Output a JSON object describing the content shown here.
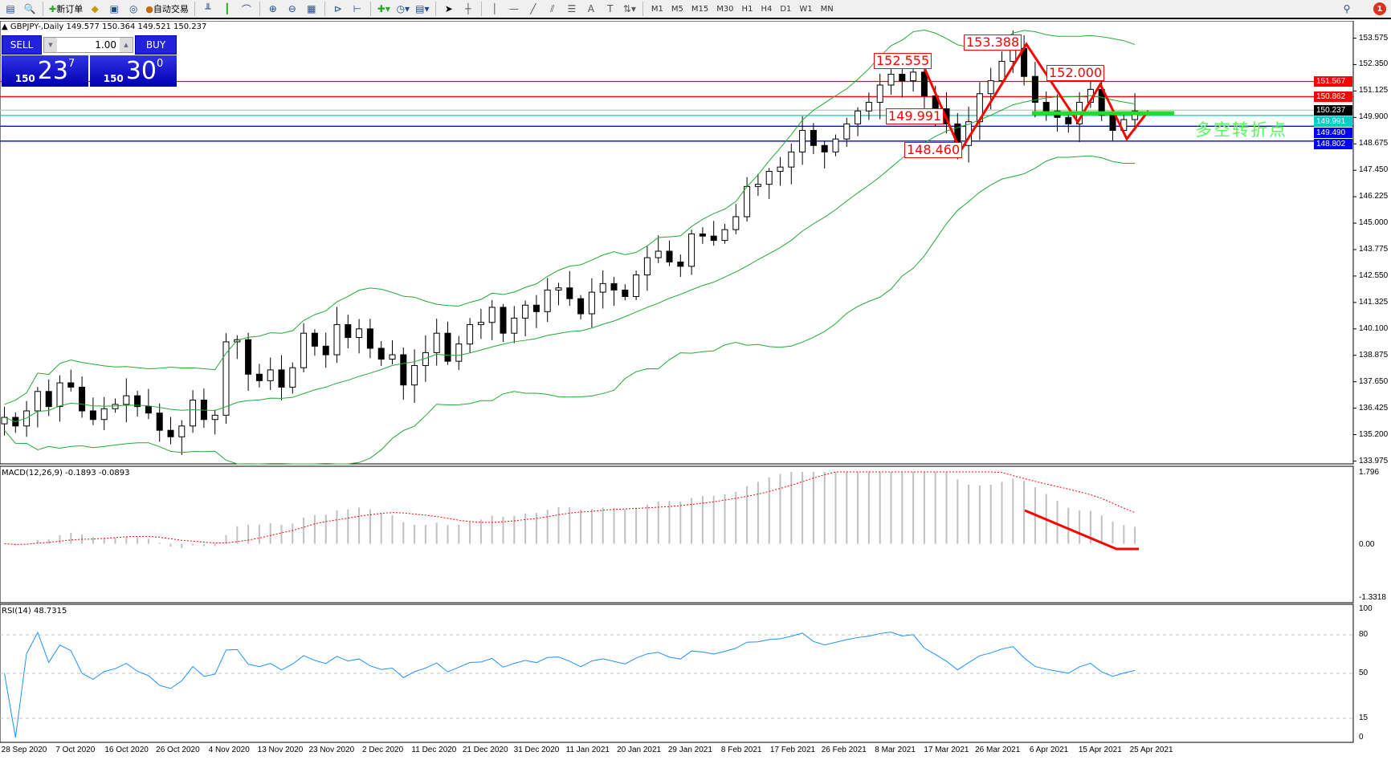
{
  "toolbar": {
    "new_order": "新订单",
    "auto_trading": "自动交易",
    "timeframes": [
      "M1",
      "M5",
      "M15",
      "M30",
      "H1",
      "H4",
      "D1",
      "W1",
      "MN"
    ],
    "notification_count": "1"
  },
  "symbol": {
    "info": "GBPJPY-,Daily  149.577 150.364 149.521 150.237"
  },
  "trade_panel": {
    "sell_label": "SELL",
    "buy_label": "BUY",
    "lot": "1.00",
    "sell_small": "150",
    "sell_big": "23",
    "sell_sup": "7",
    "buy_small": "150",
    "buy_big": "30",
    "buy_sup": "0"
  },
  "colors": {
    "bull": "#ffffff",
    "bear": "#000000",
    "bands": "#22aa33",
    "macd_hist": "#c0c0c0",
    "signal": "#ff0000",
    "rsi": "#1e90ff",
    "annotation": "#ff0000",
    "turn_line": "#22dd22"
  },
  "chart_data": {
    "type": "candlestick",
    "price_axis": [
      "153.575",
      "152.350",
      "151.125",
      "149.900",
      "148.675",
      "147.450",
      "146.225",
      "145.000",
      "143.775",
      "142.550",
      "141.325",
      "140.100",
      "138.875",
      "137.650",
      "136.425",
      "135.200",
      "133.975"
    ],
    "ylim": [
      133.975,
      153.575
    ],
    "dates": [
      "28 Sep 2020",
      "7 Oct 2020",
      "16 Oct 2020",
      "26 Oct 2020",
      "4 Nov 2020",
      "13 Nov 2020",
      "23 Nov 2020",
      "2 Dec 2020",
      "11 Dec 2020",
      "21 Dec 2020",
      "31 Dec 2020",
      "11 Jan 2021",
      "20 Jan 2021",
      "29 Jan 2021",
      "8 Feb 2021",
      "17 Feb 2021",
      "26 Feb 2021",
      "8 Mar 2021",
      "17 Mar 2021",
      "26 Mar 2021",
      "6 Apr 2021",
      "15 Apr 2021",
      "25 Apr 2021"
    ],
    "closes": [
      136.0,
      135.6,
      136.3,
      137.2,
      136.5,
      137.6,
      137.4,
      136.3,
      135.9,
      136.4,
      136.6,
      137.0,
      136.5,
      136.2,
      135.4,
      135.1,
      135.6,
      136.8,
      135.9,
      136.1,
      139.5,
      139.6,
      138.0,
      137.7,
      138.2,
      137.4,
      138.3,
      139.9,
      139.3,
      138.9,
      140.3,
      139.7,
      140.1,
      139.2,
      138.7,
      138.9,
      137.5,
      138.4,
      139.0,
      139.9,
      138.6,
      139.4,
      140.3,
      140.4,
      141.1,
      139.9,
      140.6,
      141.2,
      140.9,
      141.9,
      142.0,
      141.5,
      140.8,
      141.8,
      142.2,
      141.9,
      141.6,
      142.6,
      143.4,
      143.7,
      143.2,
      143.0,
      144.5,
      144.4,
      144.2,
      144.7,
      145.3,
      146.7,
      146.8,
      147.4,
      147.6,
      148.3,
      149.3,
      148.6,
      148.3,
      148.9,
      149.6,
      150.2,
      150.6,
      151.4,
      151.9,
      151.6,
      152.0,
      150.9,
      150.3,
      149.6,
      148.6,
      149.7,
      151.0,
      151.6,
      152.5,
      153.1,
      151.8,
      150.6,
      150.2,
      149.9,
      149.6,
      150.6,
      151.2,
      150.0,
      149.3,
      149.8,
      150.2
    ],
    "levels": [
      {
        "price": "151.567",
        "color": "#ff0000"
      },
      {
        "price": "150.862",
        "color": "#ff0000"
      },
      {
        "price": "150.237",
        "color": "#000000"
      },
      {
        "price": "149.991",
        "color": "#00cccc"
      },
      {
        "price": "149.490",
        "color": "#0000ff"
      },
      {
        "price": "148.802",
        "color": "#0000ff"
      }
    ],
    "annotations": [
      "152.555",
      "153.388",
      "152.000",
      "149.991",
      "148.460"
    ],
    "annotation_text": "多空转折点",
    "macd": {
      "label": "MACD(12,26,9) -0.1893 -0.0893",
      "axis": [
        "1.796",
        "0.00",
        "-1.3318"
      ]
    },
    "rsi": {
      "label": "RSI(14) 48.7315",
      "axis": [
        "100",
        "80",
        "50",
        "15",
        "0"
      ]
    }
  }
}
